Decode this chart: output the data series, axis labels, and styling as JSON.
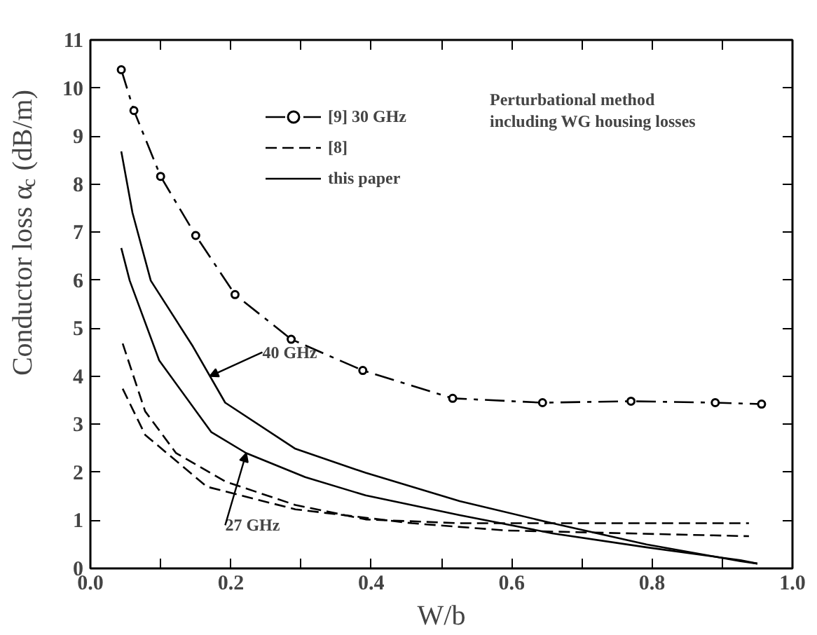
{
  "chart_data": {
    "type": "line",
    "xlabel": "W/b",
    "ylabel": "Conductor loss α$_{c}$ (dB/m)",
    "xlim": [
      0,
      1
    ],
    "ylim": [
      0,
      11
    ],
    "xticks": [
      {
        "value": 0,
        "label": "0.0"
      },
      {
        "value": 0.1,
        "label": null
      },
      {
        "value": 0.2,
        "label": "0.2"
      },
      {
        "value": 0.3,
        "label": null
      },
      {
        "value": 0.4,
        "label": "0.4"
      },
      {
        "value": 0.5,
        "label": null
      },
      {
        "value": 0.6,
        "label": "0.6"
      },
      {
        "value": 0.7,
        "label": null
      },
      {
        "value": 0.8,
        "label": "0.8"
      },
      {
        "value": 0.9,
        "label": null
      },
      {
        "value": 1,
        "label": "1.0"
      }
    ],
    "yticks": [
      0,
      1,
      2,
      3,
      4,
      5,
      6,
      7,
      8,
      9,
      10,
      11
    ],
    "grid": false,
    "legend": "top",
    "series": [
      {
        "name": "[9] 30 GHz",
        "color": "#000000",
        "line_style": "dashdot",
        "marker": "circle",
        "x": [
          0.044,
          0.062,
          0.1,
          0.15,
          0.206,
          0.286,
          0.388,
          0.516,
          0.644,
          0.77,
          0.89,
          0.956
        ],
        "values": [
          10.38,
          9.53,
          8.16,
          6.93,
          5.7,
          4.77,
          4.12,
          3.54,
          3.45,
          3.48,
          3.45,
          3.42
        ]
      },
      {
        "name": "[8]",
        "color": "#000000",
        "line_style": "dashed",
        "marker": "none",
        "x": [
          0.046,
          0.078,
          0.122,
          0.192,
          0.292,
          0.392,
          0.526,
          0.658,
          0.938
        ],
        "values": [
          4.68,
          3.27,
          2.4,
          1.81,
          1.32,
          1.02,
          0.94,
          0.94,
          0.94
        ]
      },
      {
        "color": "#000000",
        "line_style": "dashed",
        "marker": "none",
        "x": [
          0.046,
          0.078,
          0.166,
          0.292,
          0.458,
          0.592,
          0.938
        ],
        "values": [
          3.74,
          2.78,
          1.7,
          1.23,
          0.94,
          0.79,
          0.67
        ]
      },
      {
        "name": "this paper",
        "color": "#000000",
        "line_style": "solid",
        "marker": "none",
        "x": [
          0.044,
          0.06,
          0.086,
          0.146,
          0.192,
          0.292,
          0.392,
          0.526,
          0.658,
          0.792,
          0.926,
          0.95
        ],
        "values": [
          8.68,
          7.4,
          5.99,
          4.62,
          3.45,
          2.49,
          1.99,
          1.4,
          0.94,
          0.5,
          0.15,
          0.1
        ]
      },
      {
        "color": "#000000",
        "line_style": "solid",
        "marker": "none",
        "x": [
          0.044,
          0.056,
          0.098,
          0.172,
          0.222,
          0.306,
          0.392,
          0.526,
          0.658,
          0.792,
          0.926,
          0.95
        ],
        "values": [
          6.67,
          5.99,
          4.33,
          2.84,
          2.4,
          1.9,
          1.52,
          1.11,
          0.73,
          0.44,
          0.17,
          0.1
        ]
      }
    ],
    "annotations": [
      "Perturbational method\nincluding WG housing losses",
      {
        "text": "40 GHz",
        "x": 0.17,
        "y": 4.0
      },
      {
        "text": "27 GHz",
        "x": 0.222,
        "y": 2.4
      }
    ]
  }
}
